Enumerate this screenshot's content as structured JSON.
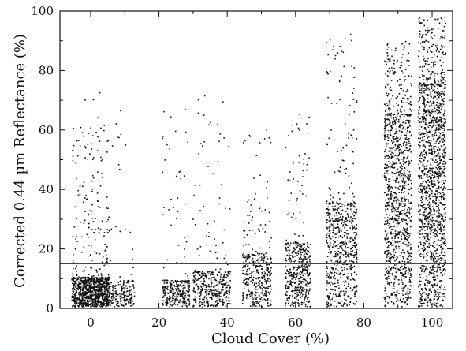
{
  "chart_data": {
    "type": "scatter",
    "title": "",
    "xlabel": "Cloud Cover (%)",
    "ylabel": "Corrected 0.44 µm Reflectance (%)",
    "xlim": [
      -9,
      106
    ],
    "ylim": [
      0,
      100
    ],
    "x_ticks": [
      0,
      20,
      40,
      60,
      80,
      100
    ],
    "x_tick_labels": [
      "0",
      "20",
      "40",
      "60",
      "80",
      "100"
    ],
    "y_ticks": [
      0,
      20,
      40,
      60,
      80,
      100
    ],
    "y_tick_labels": [
      "0",
      "20",
      "40",
      "60",
      "80",
      "100"
    ],
    "grid": false,
    "legend": "none",
    "reference_line": {
      "y": 15
    },
    "point_color": "#111111",
    "clusters": [
      {
        "x_center": 0,
        "x_spread": [
          -5.5,
          5.5
        ],
        "count": 900,
        "y_typical_max": 10,
        "y_outlier_max": 62
      },
      {
        "x_center": 10,
        "x_spread": [
          -2.5,
          13
        ],
        "count": 380,
        "y_typical_max": 9,
        "y_outlier_max": 74
      },
      {
        "x_center": 25,
        "x_spread": [
          21,
          29
        ],
        "count": 300,
        "y_typical_max": 9,
        "y_outlier_max": 68
      },
      {
        "x_center": 36,
        "x_spread": [
          30,
          41
        ],
        "count": 380,
        "y_typical_max": 12,
        "y_outlier_max": 72
      },
      {
        "x_center": 50,
        "x_spread": [
          44.5,
          53
        ],
        "count": 380,
        "y_typical_max": 18,
        "y_outlier_max": 62
      },
      {
        "x_center": 62,
        "x_spread": [
          57,
          64.5
        ],
        "count": 460,
        "y_typical_max": 22,
        "y_outlier_max": 68
      },
      {
        "x_center": 75,
        "x_spread": [
          69,
          78
        ],
        "count": 650,
        "y_typical_max": 35,
        "y_outlier_max": 93
      },
      {
        "x_center": 90,
        "x_spread": [
          86,
          94
        ],
        "count": 1100,
        "y_typical_max": 65,
        "y_outlier_max": 90
      },
      {
        "x_center": 100,
        "x_spread": [
          96,
          104
        ],
        "count": 1500,
        "y_typical_max": 75,
        "y_outlier_max": 98
      }
    ]
  }
}
